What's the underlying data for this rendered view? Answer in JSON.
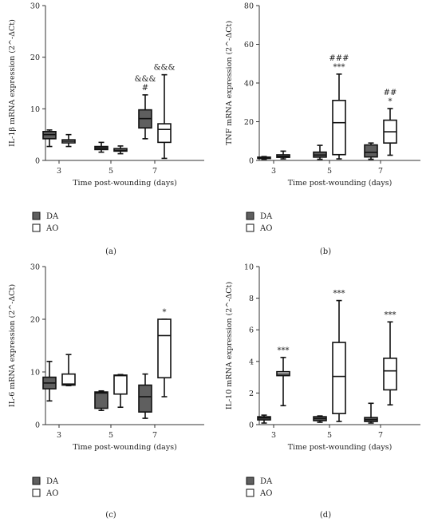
{
  "colors": {
    "DA": "#5f5f5f",
    "AO": "#ffffff",
    "stroke": "#111111"
  },
  "chart_data": [
    {
      "type": "box",
      "panel_label": "(a)",
      "ylabel": "IL-1β mRNA expression (2^-ΔCt)",
      "xlabel": "Time post-wounding (days)",
      "ylim": [
        0,
        30
      ],
      "yticks": [
        0,
        10,
        20,
        30
      ],
      "categories": [
        "3",
        "5",
        "7"
      ],
      "legend": [
        "DA",
        "AO"
      ],
      "series": [
        {
          "name": "DA",
          "boxes": [
            {
              "min": 2.7,
              "q1": 4.2,
              "median": 5.0,
              "q3": 5.6,
              "max": 5.9
            },
            {
              "min": 1.6,
              "q1": 2.1,
              "median": 2.4,
              "q3": 2.7,
              "max": 3.5
            },
            {
              "min": 4.2,
              "q1": 6.3,
              "median": 8.1,
              "q3": 9.8,
              "max": 12.7
            }
          ]
        },
        {
          "name": "AO",
          "boxes": [
            {
              "min": 2.7,
              "q1": 3.4,
              "median": 3.7,
              "q3": 4.0,
              "max": 5.0
            },
            {
              "min": 1.3,
              "q1": 1.8,
              "median": 2.0,
              "q3": 2.3,
              "max": 2.8
            },
            {
              "min": 0.4,
              "q1": 3.5,
              "median": 6.0,
              "q3": 7.1,
              "max": 16.6
            }
          ]
        }
      ],
      "annotations": [
        {
          "category": 2,
          "series": 0,
          "lines": [
            "&&&",
            "#"
          ]
        },
        {
          "category": 2,
          "series": 1,
          "lines": [
            "&&&"
          ]
        }
      ]
    },
    {
      "type": "box",
      "panel_label": "(b)",
      "ylabel": "TNF mRNA expression (2^-ΔCt)",
      "xlabel": "Time post-wounding (days)",
      "ylim": [
        0,
        80
      ],
      "yticks": [
        0,
        20,
        40,
        60,
        80
      ],
      "categories": [
        "3",
        "5",
        "7"
      ],
      "legend": [
        "DA",
        "AO"
      ],
      "series": [
        {
          "name": "DA",
          "boxes": [
            {
              "min": 0.6,
              "q1": 1.0,
              "median": 1.3,
              "q3": 1.7,
              "max": 2.0
            },
            {
              "min": 0.6,
              "q1": 1.7,
              "median": 2.8,
              "q3": 4.3,
              "max": 7.8
            },
            {
              "min": 0.6,
              "q1": 1.8,
              "median": 4.2,
              "q3": 8.0,
              "max": 9.0
            }
          ]
        },
        {
          "name": "AO",
          "boxes": [
            {
              "min": 0.8,
              "q1": 1.6,
              "median": 2.2,
              "q3": 2.9,
              "max": 4.8
            },
            {
              "min": 0.8,
              "q1": 3.0,
              "median": 19.5,
              "q3": 31.0,
              "max": 44.6
            },
            {
              "min": 2.7,
              "q1": 9.0,
              "median": 14.8,
              "q3": 20.8,
              "max": 26.8
            }
          ]
        }
      ],
      "annotations": [
        {
          "category": 1,
          "series": 1,
          "lines": [
            "###",
            "***"
          ]
        },
        {
          "category": 2,
          "series": 1,
          "lines": [
            "##",
            "*"
          ]
        }
      ]
    },
    {
      "type": "box",
      "panel_label": "(c)",
      "ylabel": "IL-6 mRNA expression (2^-ΔCt)",
      "xlabel": "Time post-wounding (days)",
      "ylim": [
        0,
        30
      ],
      "yticks": [
        0,
        10,
        20,
        30
      ],
      "categories": [
        "3",
        "5",
        "7"
      ],
      "legend": [
        "DA",
        "AO"
      ],
      "series": [
        {
          "name": "DA",
          "boxes": [
            {
              "min": 4.5,
              "q1": 6.8,
              "median": 7.9,
              "q3": 9.0,
              "max": 12.0
            },
            {
              "min": 2.7,
              "q1": 3.1,
              "median": 6.0,
              "q3": 6.2,
              "max": 6.4
            },
            {
              "min": 1.2,
              "q1": 2.4,
              "median": 5.3,
              "q3": 7.5,
              "max": 9.6
            }
          ]
        },
        {
          "name": "AO",
          "boxes": [
            {
              "min": 7.4,
              "q1": 7.5,
              "median": 7.7,
              "q3": 9.6,
              "max": 13.3
            },
            {
              "min": 3.3,
              "q1": 5.8,
              "median": 9.3,
              "q3": 9.4,
              "max": 9.5
            },
            {
              "min": 5.3,
              "q1": 8.9,
              "median": 16.9,
              "q3": 20.0,
              "max": 20.0
            }
          ]
        }
      ],
      "annotations": [
        {
          "category": 2,
          "series": 1,
          "lines": [
            "*"
          ]
        }
      ]
    },
    {
      "type": "box",
      "panel_label": "(d)",
      "ylabel": "IL-10 mRNA expression (2^-ΔCt)",
      "xlabel": "Time post-wounding (days)",
      "ylim": [
        0,
        10
      ],
      "yticks": [
        0,
        2,
        4,
        6,
        8,
        10
      ],
      "categories": [
        "3",
        "5",
        "7"
      ],
      "legend": [
        "DA",
        "AO"
      ],
      "series": [
        {
          "name": "DA",
          "boxes": [
            {
              "min": 0.1,
              "q1": 0.3,
              "median": 0.42,
              "q3": 0.5,
              "max": 0.6
            },
            {
              "min": 0.15,
              "q1": 0.25,
              "median": 0.38,
              "q3": 0.5,
              "max": 0.55
            },
            {
              "min": 0.1,
              "q1": 0.2,
              "median": 0.32,
              "q3": 0.45,
              "max": 1.35
            }
          ]
        },
        {
          "name": "AO",
          "boxes": [
            {
              "min": 1.2,
              "q1": 3.1,
              "median": 3.2,
              "q3": 3.35,
              "max": 4.25
            },
            {
              "min": 0.2,
              "q1": 0.7,
              "median": 3.05,
              "q3": 5.2,
              "max": 7.85
            },
            {
              "min": 1.25,
              "q1": 2.2,
              "median": 3.4,
              "q3": 4.2,
              "max": 6.5
            }
          ]
        }
      ],
      "annotations": [
        {
          "category": 0,
          "series": 1,
          "lines": [
            "***"
          ]
        },
        {
          "category": 1,
          "series": 1,
          "lines": [
            "***"
          ]
        },
        {
          "category": 2,
          "series": 1,
          "lines": [
            "***"
          ]
        }
      ]
    }
  ]
}
